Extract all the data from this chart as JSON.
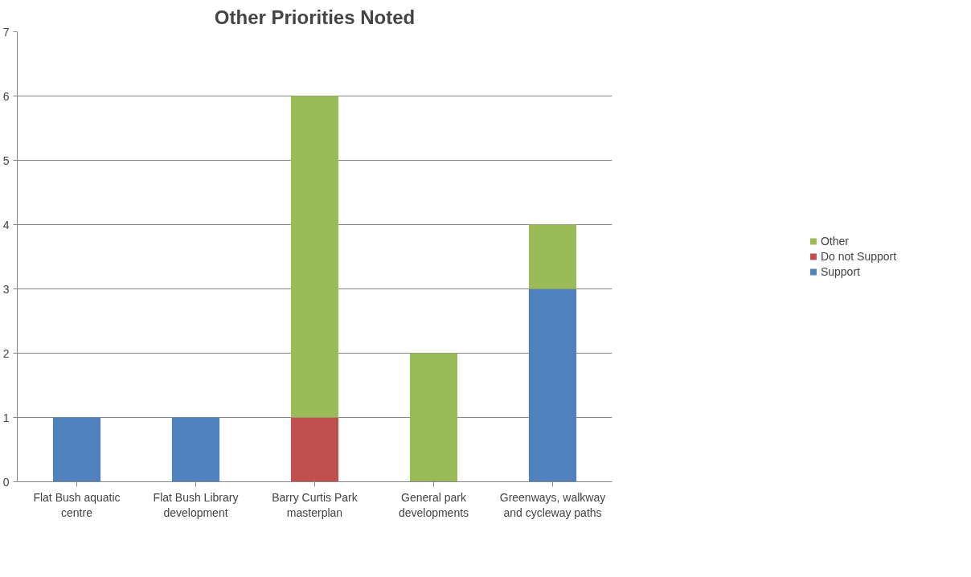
{
  "chart_data": {
    "type": "bar",
    "title": "Other Priorities Noted",
    "stacked": true,
    "categories": [
      "Flat Bush aquatic centre",
      "Flat Bush Library development",
      "Barry Curtis Park masterplan",
      "General park developments",
      "Greenways, walkway and cycleway paths"
    ],
    "series": [
      {
        "name": "Support",
        "color": "#4f81bd",
        "values": [
          1,
          1,
          0,
          0,
          3
        ]
      },
      {
        "name": "Do not Support",
        "color": "#c0504d",
        "values": [
          0,
          0,
          1,
          0,
          0
        ]
      },
      {
        "name": "Other",
        "color": "#9bbb59",
        "values": [
          0,
          0,
          5,
          2,
          1
        ]
      }
    ],
    "ylim": [
      0,
      7
    ],
    "yticks": [
      0,
      1,
      2,
      3,
      4,
      5,
      6,
      7
    ],
    "grid": "y",
    "legend": "right"
  }
}
